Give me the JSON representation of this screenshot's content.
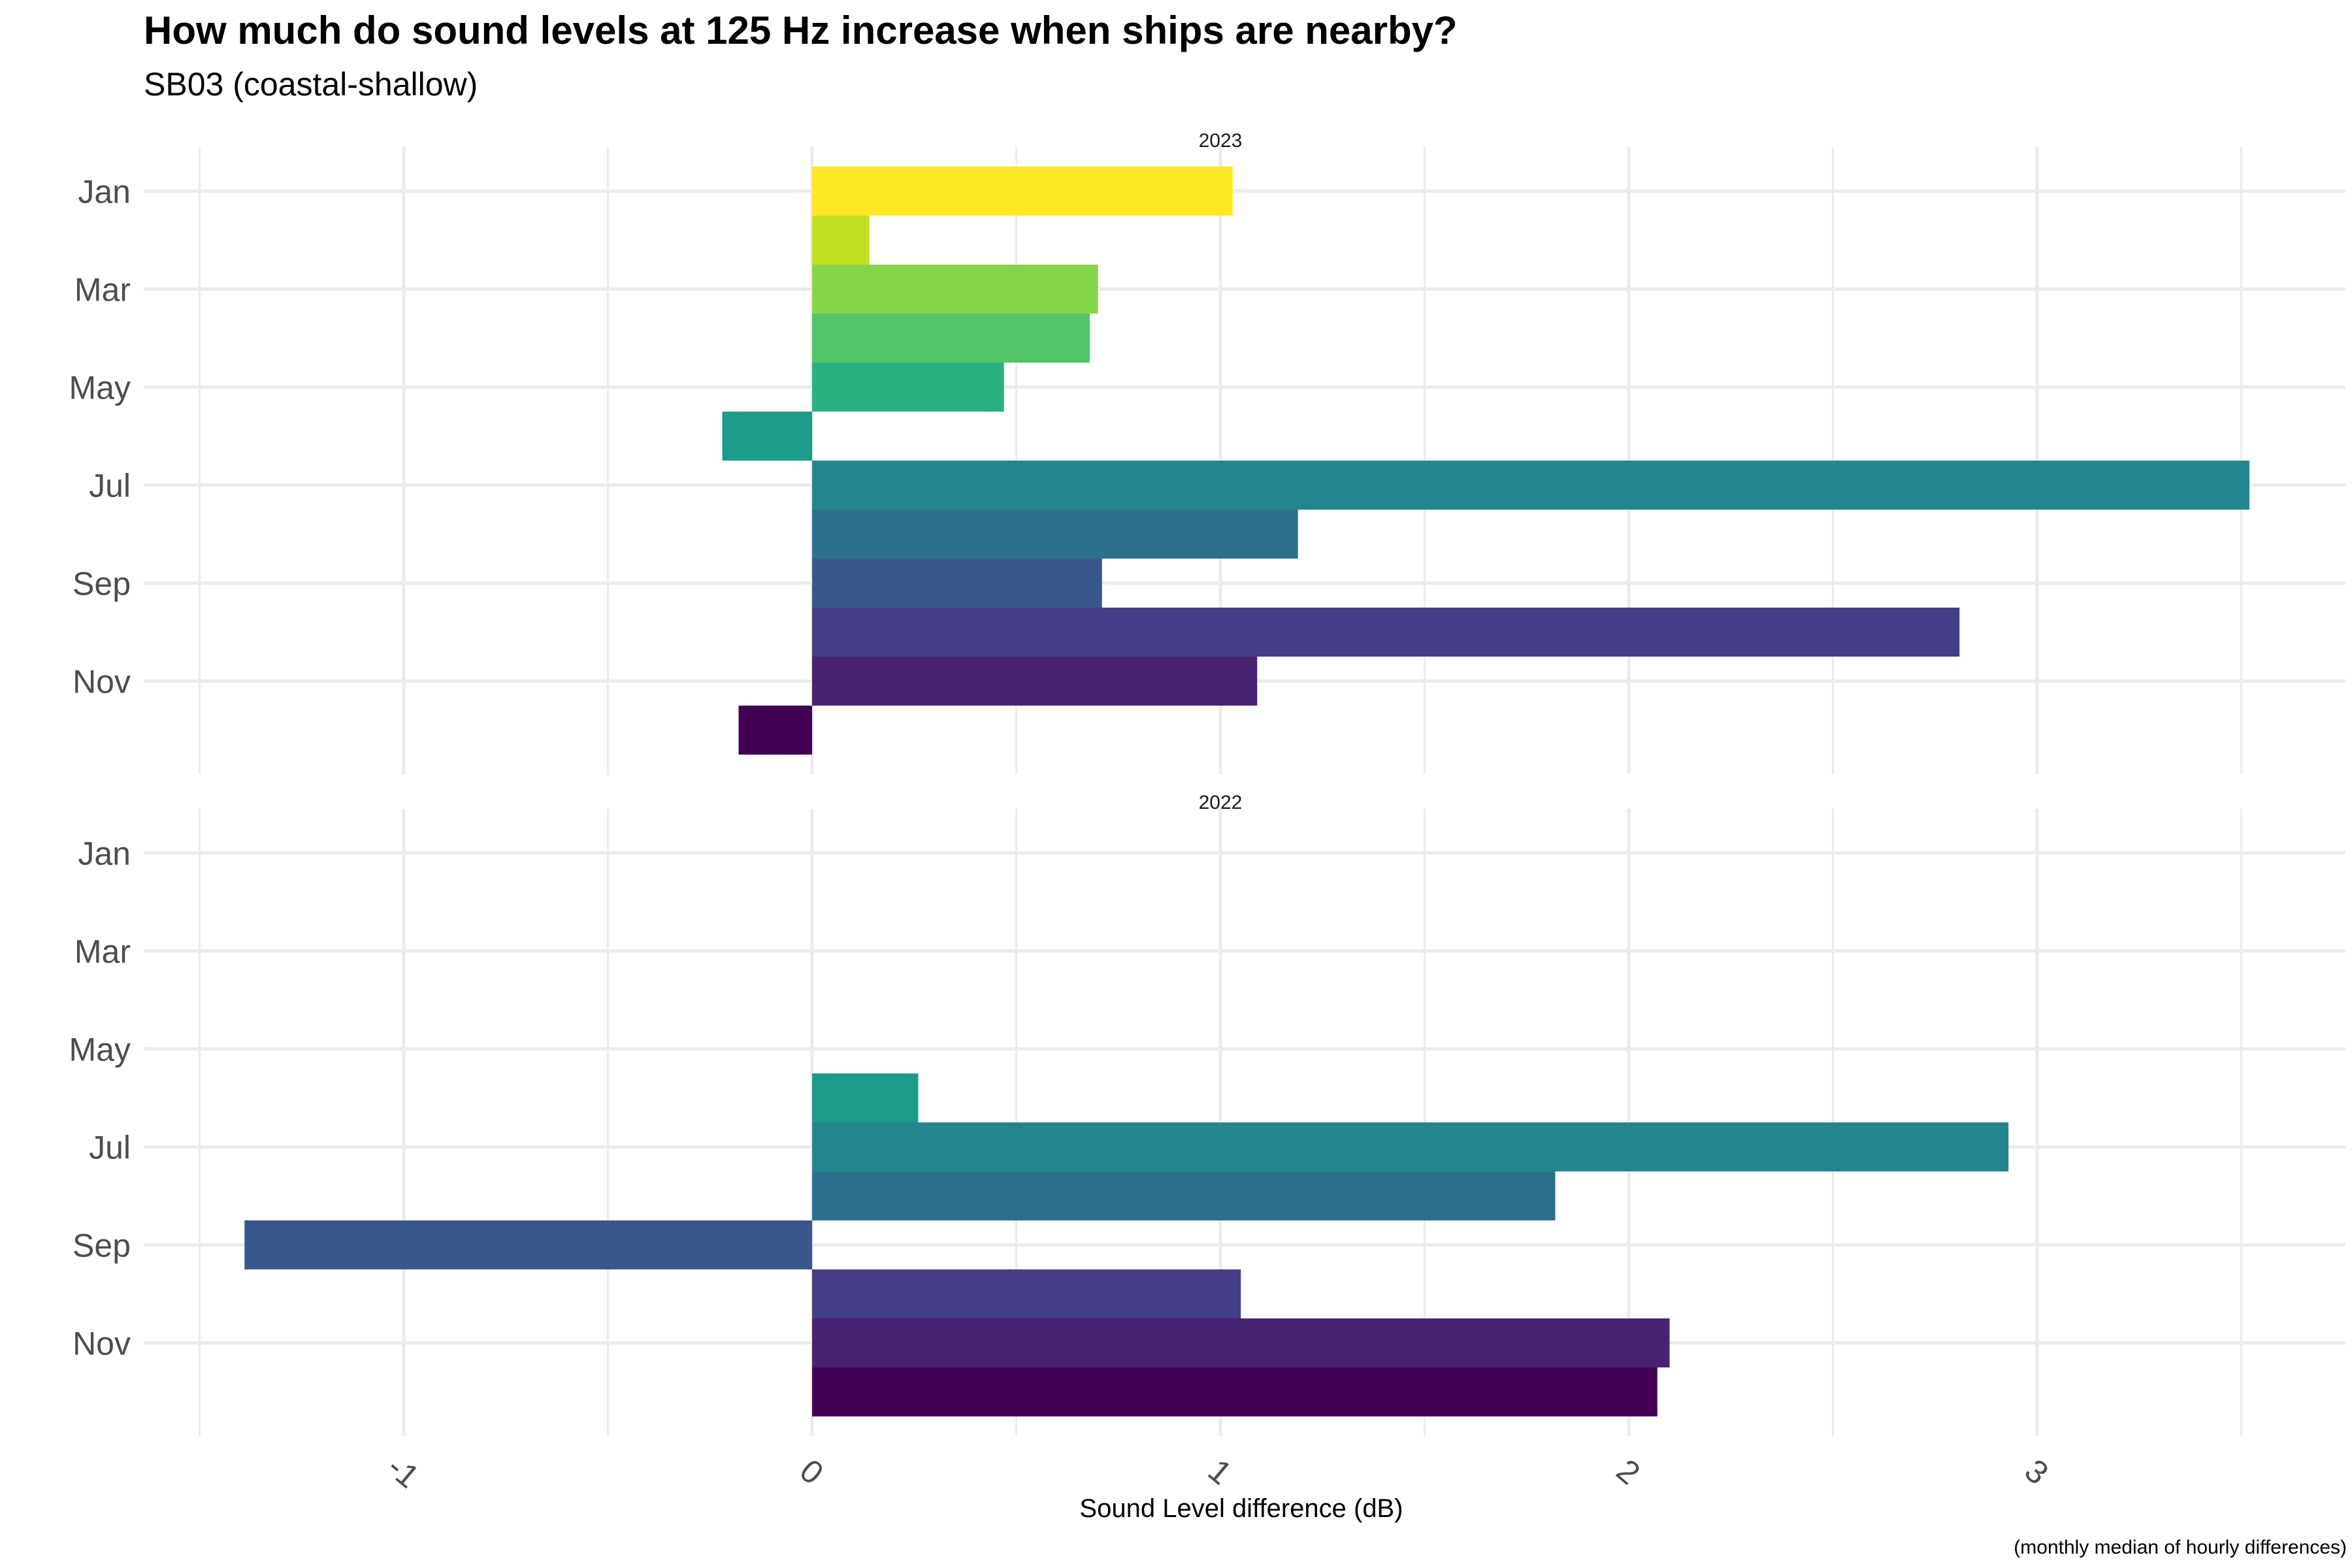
{
  "chart_data": {
    "type": "bar",
    "orientation": "horizontal",
    "title": "How much do sound levels at 125 Hz increase when ships are nearby?",
    "subtitle": "SB03 (coastal-shallow)",
    "xlabel": "Sound Level difference (dB)",
    "caption": "(monthly median of hourly differences)",
    "xlim": [
      -1.5,
      3.5
    ],
    "x_ticks": [
      -1,
      0,
      1,
      2,
      3
    ],
    "y_ticks": [
      "Jan",
      "Mar",
      "May",
      "Jul",
      "Sep",
      "Nov"
    ],
    "months": [
      "Jan",
      "Feb",
      "Mar",
      "Apr",
      "May",
      "Jun",
      "Jul",
      "Aug",
      "Sep",
      "Oct",
      "Nov",
      "Dec"
    ],
    "month_colors": [
      "#FDE725",
      "#C2DF23",
      "#86D549",
      "#52C569",
      "#2AB07F",
      "#1E9B8A",
      "#25858E",
      "#2D708E",
      "#38588C",
      "#433E85",
      "#482173",
      "#440154"
    ],
    "grid": true,
    "legend": "none",
    "panels": [
      {
        "strip": "2023",
        "values": [
          1.03,
          0.14,
          0.7,
          0.68,
          0.47,
          -0.22,
          3.52,
          1.19,
          0.71,
          2.81,
          1.09,
          -0.18
        ]
      },
      {
        "strip": "2022",
        "values": [
          null,
          null,
          null,
          null,
          null,
          0.26,
          2.93,
          1.82,
          -1.39,
          1.05,
          2.1,
          2.07
        ]
      }
    ]
  }
}
